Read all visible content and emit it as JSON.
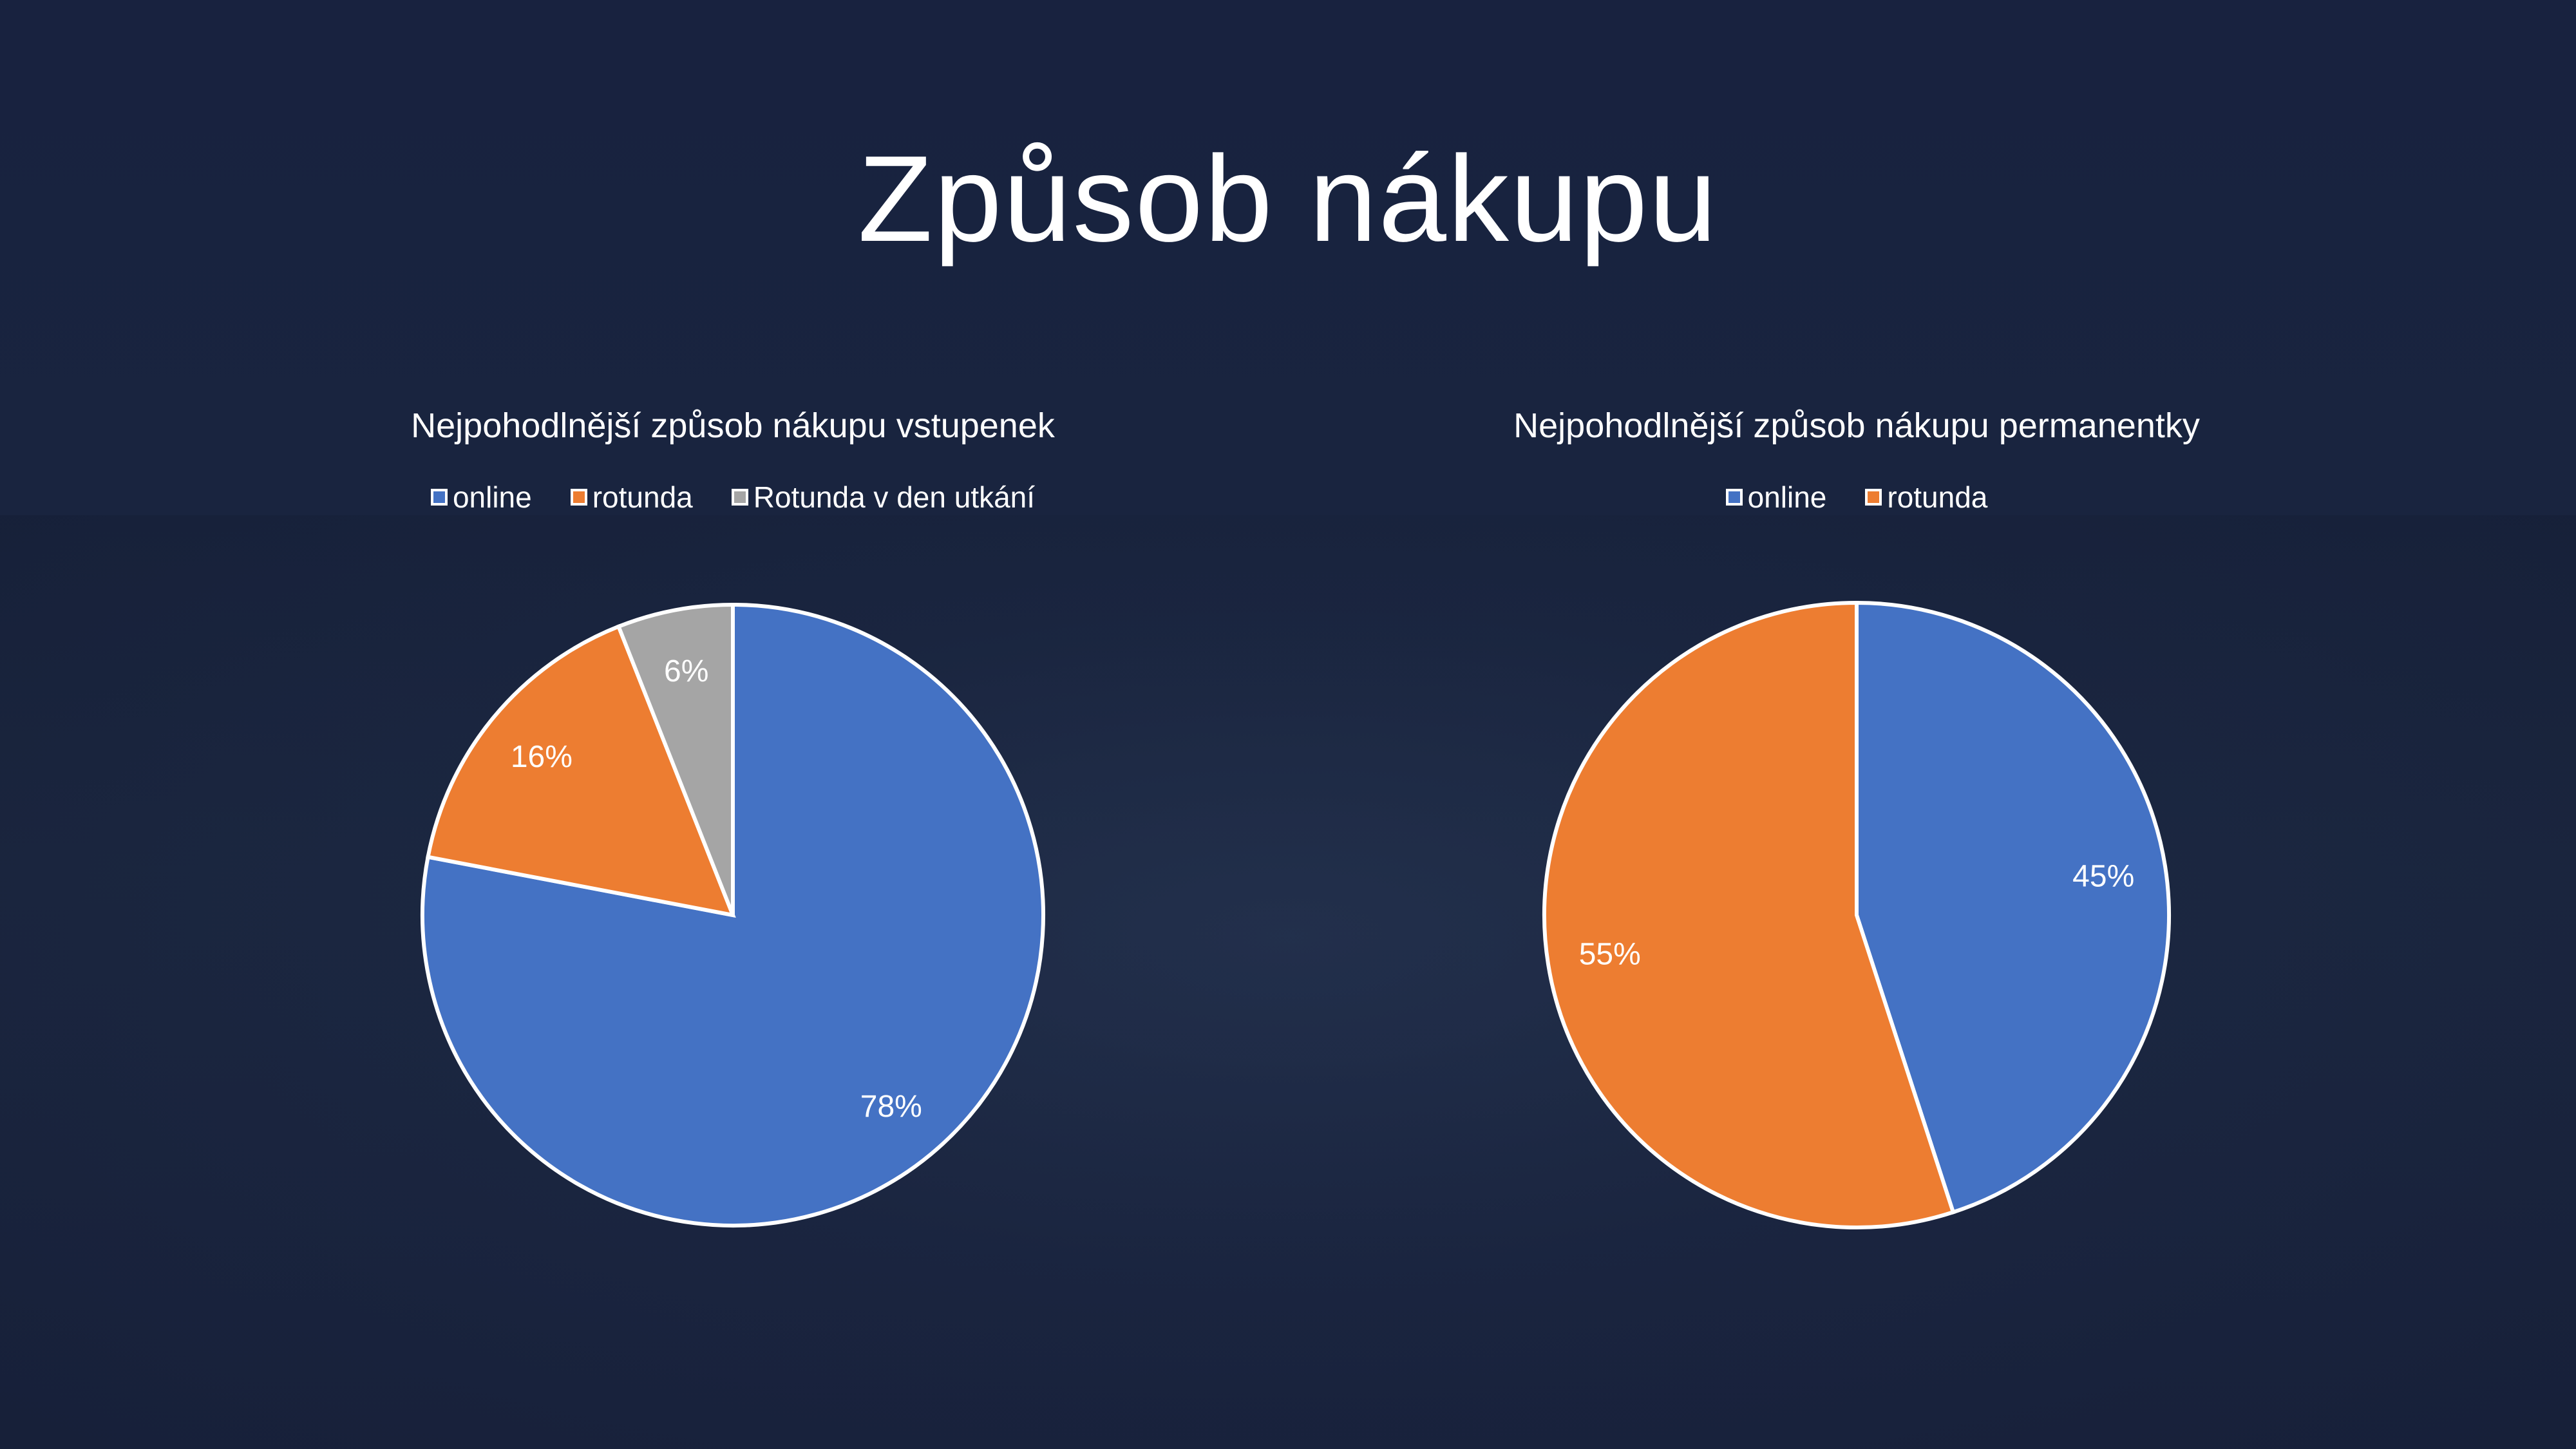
{
  "slide_title": "Způsob nákupu",
  "chart_data": [
    {
      "type": "pie",
      "title": "Nejpohodlnější způsob nákupu vstupenek",
      "categories": [
        "online",
        "rotunda",
        "Rotunda v den utkání"
      ],
      "values": [
        78,
        16,
        6
      ],
      "labels": [
        "78%",
        "16%",
        "6%"
      ],
      "colors": [
        "#4472c4",
        "#ed7d31",
        "#a5a5a5"
      ],
      "legend": "top"
    },
    {
      "type": "pie",
      "title": "Nejpohodlnější způsob nákupu permanentky",
      "categories": [
        "online",
        "rotunda"
      ],
      "values": [
        45,
        55
      ],
      "labels": [
        "45%",
        "55%"
      ],
      "colors": [
        "#4472c4",
        "#ed7d31"
      ],
      "legend": "top"
    }
  ]
}
